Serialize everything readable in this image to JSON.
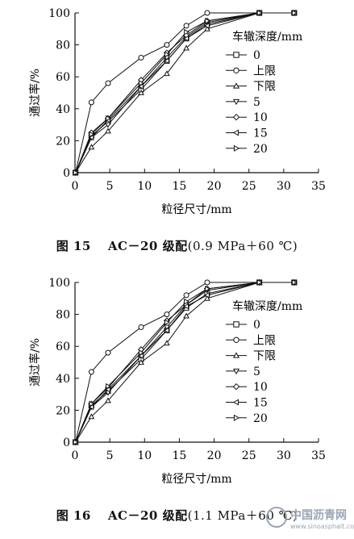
{
  "figures": [
    {
      "caption": {
        "number": "图 15",
        "title": "AC－20 级配",
        "condition": "(0.9 MPa＋60 ℃)"
      }
    },
    {
      "caption": {
        "number": "图 16",
        "title": "AC－20 级配",
        "condition": "(1.1 MPa＋60 ℃)"
      }
    }
  ],
  "watermark": {
    "text": "中国沥青网",
    "url": "www.sinoasphalt.com"
  },
  "chart_data": [
    {
      "type": "line",
      "title": "",
      "xlabel": "粒径尺寸/mm",
      "ylabel": "通过率/%",
      "xlim": [
        0,
        35
      ],
      "ylim": [
        0,
        100
      ],
      "xticks": [
        0,
        5,
        10,
        15,
        20,
        25,
        30,
        35
      ],
      "yticks": [
        0,
        20,
        40,
        60,
        80,
        100
      ],
      "grid": false,
      "legend_title": "车辙深度/mm",
      "legend_position": "right",
      "x": [
        0.075,
        2.36,
        4.75,
        9.5,
        13.2,
        16,
        19,
        26.5,
        31.5
      ],
      "series": [
        {
          "name": "0",
          "marker": "square",
          "values": [
            0,
            23,
            32,
            52,
            70,
            84,
            93,
            100,
            100
          ]
        },
        {
          "name": "上限",
          "marker": "circle",
          "values": [
            0,
            44,
            56,
            72,
            80,
            92,
            100,
            100,
            100
          ]
        },
        {
          "name": "下限",
          "marker": "triangle-up",
          "values": [
            0,
            16,
            26,
            50,
            62,
            78,
            90,
            100,
            100
          ]
        },
        {
          "name": "5",
          "marker": "triangle-down",
          "values": [
            0,
            22,
            30,
            54,
            72,
            85,
            94,
            100,
            100
          ]
        },
        {
          "name": "10",
          "marker": "diamond",
          "values": [
            0,
            25,
            34,
            58,
            75,
            86,
            95,
            100,
            100
          ]
        },
        {
          "name": "15",
          "marker": "triangle-left",
          "values": [
            0,
            22,
            33,
            54,
            70,
            84,
            92,
            100,
            100
          ]
        },
        {
          "name": "20",
          "marker": "triangle-right",
          "values": [
            0,
            24,
            34,
            56,
            74,
            88,
            95,
            100,
            100
          ]
        }
      ]
    },
    {
      "type": "line",
      "title": "",
      "xlabel": "粒径尺寸/mm",
      "ylabel": "通过率/%",
      "xlim": [
        0,
        35
      ],
      "ylim": [
        0,
        100
      ],
      "xticks": [
        0,
        5,
        10,
        15,
        20,
        25,
        30,
        35
      ],
      "yticks": [
        0,
        20,
        40,
        60,
        80,
        100
      ],
      "grid": false,
      "legend_title": "车辙深度/mm",
      "legend_position": "right",
      "x": [
        0.075,
        2.36,
        4.75,
        9.5,
        13.2,
        16,
        19,
        26.5,
        31.5
      ],
      "series": [
        {
          "name": "0",
          "marker": "square",
          "values": [
            0,
            23,
            32,
            52,
            70,
            84,
            93,
            100,
            100
          ]
        },
        {
          "name": "上限",
          "marker": "circle",
          "values": [
            0,
            44,
            56,
            72,
            80,
            92,
            100,
            100,
            100
          ]
        },
        {
          "name": "下限",
          "marker": "triangle-up",
          "values": [
            0,
            16,
            26,
            50,
            62,
            79,
            90,
            100,
            100
          ]
        },
        {
          "name": "5",
          "marker": "triangle-down",
          "values": [
            0,
            22,
            31,
            54,
            72,
            86,
            95,
            100,
            100
          ]
        },
        {
          "name": "10",
          "marker": "diamond",
          "values": [
            0,
            24,
            34,
            58,
            76,
            86,
            96,
            100,
            100
          ]
        },
        {
          "name": "15",
          "marker": "triangle-left",
          "values": [
            0,
            22,
            33,
            54,
            70,
            85,
            92,
            100,
            100
          ]
        },
        {
          "name": "20",
          "marker": "triangle-right",
          "values": [
            0,
            24,
            35,
            56,
            75,
            88,
            96,
            100,
            100
          ]
        }
      ]
    }
  ]
}
